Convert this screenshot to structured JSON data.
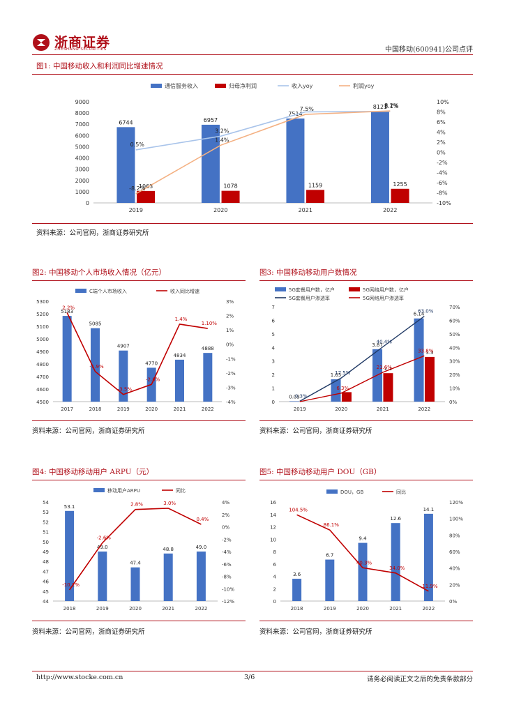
{
  "header": {
    "logo_text": "浙商证券",
    "logo_sub": "ZHESHANG SECURITIES",
    "report_title": "中国移动(600941)公司点评",
    "brand_color": "#b0101a"
  },
  "figures": [
    {
      "title": "图1:   中国移动收入和利润同比增速情况",
      "source": "资料来源：公司官网，浙商证券研究所",
      "chart_data": {
        "type": "bar",
        "categories": [
          "2019",
          "2020",
          "2021",
          "2022"
        ],
        "legend": [
          "通信服务收入",
          "归母净利润",
          "收入yoy",
          "利润yoy"
        ],
        "series": [
          {
            "name": "通信服务收入",
            "kind": "bar",
            "axis": "left",
            "color": "#4472c4",
            "values": [
              6744,
              6957,
              7514,
              8121
            ],
            "labels": [
              "6744",
              "6957",
              "7514",
              "8121"
            ]
          },
          {
            "name": "归母净利润",
            "kind": "bar",
            "axis": "left",
            "color": "#c00000",
            "values": [
              1063,
              1078,
              1159,
              1255
            ],
            "labels": [
              "1063",
              "1078",
              "1159",
              "1255"
            ]
          },
          {
            "name": "收入yoy",
            "kind": "line",
            "axis": "right",
            "color": "#a9c4ea",
            "values": [
              0.5,
              3.2,
              8.0,
              8.1
            ],
            "labels": [
              "0.5%",
              "3.2%",
              "",
              "8.1%"
            ]
          },
          {
            "name": "利润yoy",
            "kind": "line",
            "axis": "right",
            "color": "#f4b183",
            "values": [
              -8.2,
              1.4,
              7.5,
              8.2
            ],
            "labels": [
              "-8.2%",
              "1.4%",
              "7.5%",
              "8.2%"
            ]
          }
        ],
        "ylim": [
          0,
          9000
        ],
        "yticks": [
          "0",
          "1000",
          "2000",
          "3000",
          "4000",
          "5000",
          "6000",
          "7000",
          "8000",
          "9000"
        ],
        "y2lim": [
          -10,
          10
        ],
        "y2ticks": [
          "-10%",
          "-8%",
          "-6%",
          "-4%",
          "-2%",
          "0%",
          "2%",
          "4%",
          "6%",
          "8%",
          "10%"
        ],
        "legend_position": "top"
      }
    },
    {
      "title": "图2:   中国移动个人市场收入情况（亿元）",
      "source": "资料来源：公司官网，浙商证券研究所",
      "chart_data": {
        "type": "bar",
        "categories": [
          "2017",
          "2018",
          "2019",
          "2020",
          "2021",
          "2022"
        ],
        "legend": [
          "C端个人市场收入",
          "收入同比增速"
        ],
        "series": [
          {
            "name": "C端个人市场收入",
            "kind": "bar",
            "axis": "left",
            "color": "#4472c4",
            "values": [
              5183,
              5085,
              4907,
              4770,
              4834,
              4888
            ],
            "labels": [
              "5183",
              "5085",
              "4907",
              "4770",
              "4834",
              "4888"
            ]
          },
          {
            "name": "收入同比增速",
            "kind": "line",
            "axis": "right",
            "color": "#c00000",
            "values": [
              2.2,
              -1.9,
              -3.5,
              -2.8,
              1.4,
              1.1
            ],
            "labels": [
              "2.2%",
              "-1.9%",
              "-3.5%",
              "-2.8%",
              "1.4%",
              "1.10%"
            ]
          }
        ],
        "ylim": [
          4500,
          5300
        ],
        "yticks": [
          "4500",
          "4600",
          "4700",
          "4800",
          "4900",
          "5000",
          "5100",
          "5200",
          "5300"
        ],
        "y2lim": [
          -4,
          3
        ],
        "y2ticks": [
          "-4%",
          "-3%",
          "-2%",
          "-1%",
          "0%",
          "1%",
          "2%",
          "3%"
        ],
        "legend_position": "top"
      }
    },
    {
      "title": "图3:   中国移动移动用户数情况",
      "source": "资料来源：公司官网，浙商证券研究所",
      "chart_data": {
        "type": "bar",
        "categories": [
          "2019",
          "2020",
          "2021",
          "2022"
        ],
        "legend": [
          "5G套餐用户数，亿户",
          "5G网络用户数，亿户",
          "5G套餐用户渗透率",
          "5G网络用户渗透率"
        ],
        "series": [
          {
            "name": "5G套餐用户数，亿户",
            "kind": "bar",
            "axis": "left",
            "color": "#4472c4",
            "values": [
              0.03,
              1.65,
              3.87,
              6.14
            ],
            "labels": [
              "0.03",
              "1.65",
              "3.87",
              "6.14"
            ]
          },
          {
            "name": "5G网络用户数，亿户",
            "kind": "bar",
            "axis": "left",
            "color": "#c00000",
            "values": [
              0,
              0.7,
              2.1,
              3.3
            ],
            "labels": [
              "",
              "",
              "2.1",
              "3.3"
            ]
          },
          {
            "name": "5G套餐用户渗透率",
            "kind": "line",
            "axis": "right",
            "color": "#1f3864",
            "values": [
              0.3,
              17.5,
              40.4,
              63.0
            ],
            "labels": [
              "0.3%",
              "17.5%",
              "40.4%",
              "63.0%"
            ]
          },
          {
            "name": "5G网络用户渗透率",
            "kind": "line",
            "axis": "right",
            "color": "#c00000",
            "values": [
              0,
              6.3,
              21.6,
              33.8
            ],
            "labels": [
              "",
              "6.3%",
              "21.6%",
              "33.8%"
            ]
          }
        ],
        "ylim": [
          0,
          7
        ],
        "yticks": [
          "0",
          "1",
          "2",
          "3",
          "4",
          "5",
          "6",
          "7"
        ],
        "y2lim": [
          0,
          70
        ],
        "y2ticks": [
          "0%",
          "10%",
          "20%",
          "30%",
          "40%",
          "50%",
          "60%",
          "70%"
        ],
        "legend_position": "top"
      }
    },
    {
      "title": "图4:   中国移动移动用户 ARPU（元）",
      "source": "资料来源：公司官网，浙商证券研究所",
      "chart_data": {
        "type": "bar",
        "categories": [
          "2018",
          "2019",
          "2020",
          "2021",
          "2022"
        ],
        "legend": [
          "移动用户ARPU",
          "同比"
        ],
        "series": [
          {
            "name": "移动用户ARPU",
            "kind": "bar",
            "axis": "left",
            "color": "#4472c4",
            "values": [
              53.1,
              49.0,
              47.4,
              48.8,
              49.0
            ],
            "labels": [
              "53.1",
              "49.0",
              "47.4",
              "48.8",
              "49.0"
            ]
          },
          {
            "name": "同比",
            "kind": "line",
            "axis": "right",
            "color": "#c00000",
            "values": [
              -10.2,
              -2.6,
              2.8,
              3.0,
              0.4
            ],
            "labels": [
              "-10.2%",
              "-2.6%",
              "2.8%",
              "3.0%",
              "0.4%"
            ]
          }
        ],
        "ylim": [
          44,
          54
        ],
        "yticks": [
          "44",
          "45",
          "46",
          "47",
          "48",
          "49",
          "50",
          "51",
          "52",
          "53",
          "54"
        ],
        "y2lim": [
          -12,
          4
        ],
        "y2ticks": [
          "-12%",
          "-10%",
          "-8%",
          "-6%",
          "-4%",
          "-2%",
          "0%",
          "2%",
          "4%"
        ],
        "legend_position": "top"
      }
    },
    {
      "title": "图5:   中国移动移动用户 DOU（GB）",
      "source": "资料来源：公司官网，浙商证券研究所",
      "chart_data": {
        "type": "bar",
        "categories": [
          "2018",
          "2019",
          "2020",
          "2021",
          "2022"
        ],
        "legend": [
          "DOU，GB",
          "同比"
        ],
        "series": [
          {
            "name": "DOU，GB",
            "kind": "bar",
            "axis": "left",
            "color": "#4472c4",
            "values": [
              3.6,
              6.7,
              9.4,
              12.6,
              14.1
            ],
            "labels": [
              "3.6",
              "6.7",
              "9.4",
              "12.6",
              "14.1"
            ]
          },
          {
            "name": "同比",
            "kind": "line",
            "axis": "right",
            "color": "#c00000",
            "values": [
              104.5,
              86.1,
              40.3,
              34.0,
              11.9
            ],
            "labels": [
              "104.5%",
              "86.1%",
              "40.3%",
              "34.0%",
              "11.9%"
            ]
          }
        ],
        "ylim": [
          0,
          16
        ],
        "yticks": [
          "0",
          "2",
          "4",
          "6",
          "8",
          "10",
          "12",
          "14",
          "16"
        ],
        "y2lim": [
          0,
          120
        ],
        "y2ticks": [
          "0%",
          "20%",
          "40%",
          "60%",
          "80%",
          "100%",
          "120%"
        ],
        "legend_position": "top"
      }
    }
  ],
  "footer": {
    "url": "http://www.stocke.com.cn",
    "page": "3/6",
    "disclaimer": "请务必阅读正文之后的免责条款部分"
  }
}
